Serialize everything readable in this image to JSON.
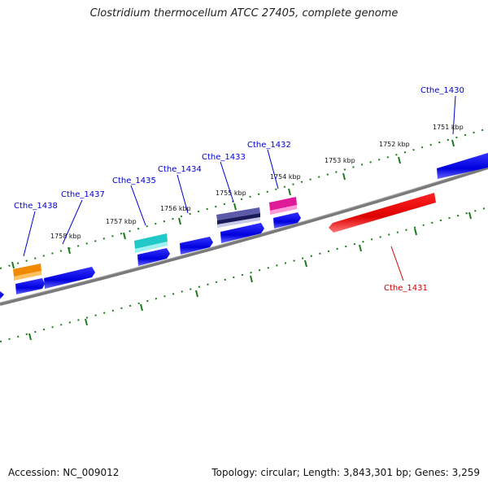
{
  "title": "Clostridium thermocellum ATCC 27405, complete genome",
  "footer": {
    "accession": "Accession: NC_009012",
    "topology": "Topology: circular; Length: 3,843,301 bp; Genes: 3,259"
  },
  "ticks": {
    "1751": "1751 kbp",
    "1752": "1752 kbp",
    "1753": "1753 kbp",
    "1754": "1754 kbp",
    "1755": "1755 kbp",
    "1756": "1756 kbp",
    "1757": "1757 kbp",
    "1758": "1758 kbp"
  },
  "genes": {
    "cthe_1430": "Cthe_1430",
    "cthe_1431": "Cthe_1431",
    "cthe_1432": "Cthe_1432",
    "cthe_1433": "Cthe_1433",
    "cthe_1434": "Cthe_1434",
    "cthe_1435": "Cthe_1435",
    "cthe_1437": "Cthe_1437",
    "cthe_1438": "Cthe_1438"
  },
  "colors": {
    "backbone": "#7a7a7a",
    "ticks": "#1d7a1d",
    "cds_blue": "#0a0ae6",
    "cthe_1431": "#e60000",
    "cthe_1432": "#e0189a",
    "cthe_1433": "#5a5aa8",
    "cthe_1435": "#20c8c8",
    "cthe_1438": "#f08a00"
  }
}
